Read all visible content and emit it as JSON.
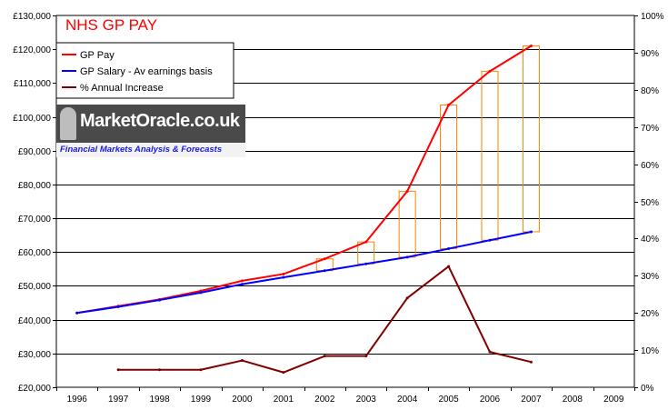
{
  "page": {
    "title": "NHS GP PAY"
  },
  "logo": {
    "brand": "MarketOracle.co.uk",
    "tagline": "Financial Markets Analysis & Forecasts",
    "colors": {
      "banner": "#4a4a4a",
      "tagline": "#1a1ae6"
    }
  },
  "chart_data": {
    "type": "line",
    "title": "NHS GP PAY",
    "categories": [
      "1996",
      "1997",
      "1998",
      "1999",
      "2000",
      "2001",
      "2002",
      "2003",
      "2004",
      "2005",
      "2006",
      "2007",
      "2008",
      "2009"
    ],
    "y_left": {
      "min": 20000,
      "max": 130000,
      "step": 10000,
      "ticks": [
        "£20,000",
        "£30,000",
        "£40,000",
        "£50,000",
        "£60,000",
        "£70,000",
        "£80,000",
        "£90,000",
        "£100,000",
        "£110,000",
        "£120,000",
        "£130,000"
      ]
    },
    "y_right": {
      "min": 0,
      "max": 100,
      "step": 10,
      "ticks": [
        "0%",
        "10%",
        "20%",
        "30%",
        "40%",
        "50%",
        "60%",
        "70%",
        "80%",
        "90%",
        "100%"
      ]
    },
    "grid": true,
    "legend_position": "top-left",
    "series": [
      {
        "name": "GP Pay",
        "axis": "left",
        "color": "#ff0000",
        "values": [
          42000,
          44000,
          46000,
          48500,
          51500,
          53500,
          58000,
          63000,
          78000,
          103500,
          113500,
          121000,
          null,
          null
        ]
      },
      {
        "name": "GP Salary - Av earnings basis",
        "axis": "left",
        "color": "#0000ff",
        "values": [
          42000,
          43800,
          45800,
          48000,
          50500,
          52500,
          54500,
          56500,
          58500,
          61000,
          63500,
          66000,
          null,
          null
        ]
      },
      {
        "name": "% Annual Increase",
        "axis": "right",
        "color": "#800000",
        "values": [
          null,
          4.7,
          4.7,
          4.7,
          7.2,
          4.0,
          8.4,
          8.4,
          24.0,
          32.5,
          9.5,
          6.8,
          null,
          null
        ]
      }
    ],
    "gap_boxes": {
      "color": "#ff8000",
      "categories": [
        "2002",
        "2003",
        "2004",
        "2005",
        "2006",
        "2007"
      ],
      "top": [
        58000,
        63000,
        78000,
        103500,
        113500,
        121000
      ],
      "bottom": [
        54500,
        56500,
        58500,
        61000,
        63500,
        66000
      ]
    }
  }
}
